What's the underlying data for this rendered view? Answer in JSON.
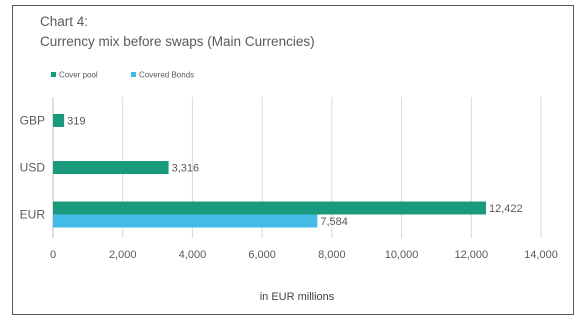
{
  "chart_data": {
    "type": "bar",
    "orientation": "horizontal",
    "title": "Chart 4:",
    "subtitle": "Currency mix before swaps (Main Currencies)",
    "xlabel": "in EUR millions",
    "ylabel": "",
    "categories": [
      "GBP",
      "USD",
      "EUR"
    ],
    "series": [
      {
        "name": "Cover pool",
        "color": "#1a9a7c",
        "values": [
          319,
          3316,
          12422
        ],
        "labels": [
          "319",
          "3,316",
          "12,422"
        ]
      },
      {
        "name": "Covered Bonds",
        "color": "#43bde8",
        "values": [
          null,
          null,
          7584
        ],
        "labels": [
          "",
          "",
          "7,584"
        ]
      }
    ],
    "xlim": [
      0,
      14000
    ],
    "xticks": [
      0,
      2000,
      4000,
      6000,
      8000,
      10000,
      12000,
      14000
    ],
    "xtick_labels": [
      "0",
      "2,000",
      "4,000",
      "6,000",
      "8,000",
      "10,000",
      "12,000",
      "14,000"
    ],
    "grid": "vertical",
    "legend_position": "top-left"
  }
}
